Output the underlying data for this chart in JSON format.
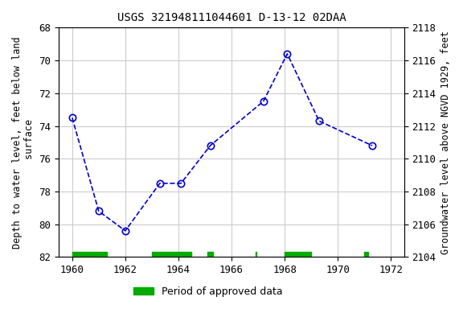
{
  "title": "USGS 321948111044601 D-13-12 02DAA",
  "x_data": [
    1960.0,
    1961.0,
    1962.0,
    1963.3,
    1964.1,
    1965.2,
    1967.2,
    1968.1,
    1969.3,
    1971.3
  ],
  "y_data": [
    73.5,
    79.2,
    80.4,
    77.5,
    77.5,
    75.2,
    72.5,
    69.6,
    73.7,
    75.2
  ],
  "xlim": [
    1959.5,
    1972.5
  ],
  "ylim": [
    82,
    68
  ],
  "y2lim": [
    2104,
    2118
  ],
  "yticks": [
    68,
    70,
    72,
    74,
    76,
    78,
    80,
    82
  ],
  "y2ticks": [
    2104,
    2106,
    2108,
    2110,
    2112,
    2114,
    2116,
    2118
  ],
  "xticks": [
    1960,
    1962,
    1964,
    1966,
    1968,
    1970,
    1972
  ],
  "ylabel_left": "Depth to water level, feet below land\n surface",
  "ylabel_right": "Groundwater level above NGVD 1929, feet",
  "line_color": "#0000cc",
  "marker_color": "#0000cc",
  "background_color": "#ffffff",
  "plot_bg_color": "#ffffff",
  "grid_color": "#cccccc",
  "green_bar_color": "#00aa00",
  "green_bars": [
    [
      1960.0,
      1961.3
    ],
    [
      1963.0,
      1964.5
    ],
    [
      1965.1,
      1965.3
    ],
    [
      1966.9,
      1966.95
    ],
    [
      1968.0,
      1969.0
    ],
    [
      1971.0,
      1971.15
    ]
  ],
  "legend_label": "Period of approved data"
}
